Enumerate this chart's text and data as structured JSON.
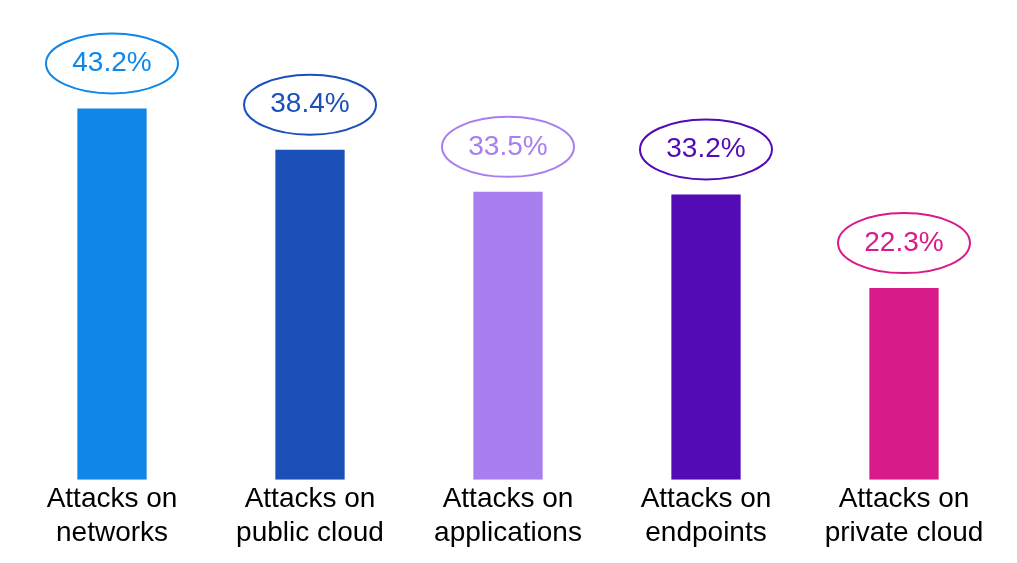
{
  "chart_data": {
    "type": "bar",
    "categories": [
      "Attacks on networks",
      "Attacks on public cloud",
      "Attacks on applications",
      "Attacks on endpoints",
      "Attacks on private cloud"
    ],
    "values": [
      43.2,
      38.4,
      33.5,
      33.2,
      22.3
    ],
    "colors": [
      "#0f87e8",
      "#1b50b8",
      "#a97ff0",
      "#520bb5",
      "#d81b8a"
    ],
    "value_labels": [
      "43.2%",
      "38.4%",
      "33.5%",
      "33.2%",
      "22.3%"
    ],
    "grid": false,
    "legend": false
  }
}
